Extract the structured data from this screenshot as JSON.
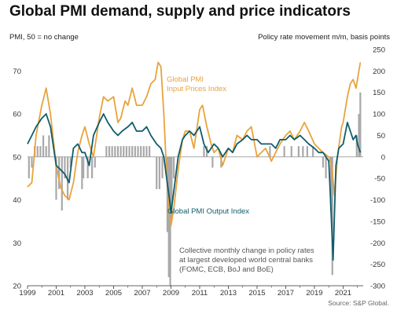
{
  "title": "Global PMI demand, supply and price indicators",
  "left_axis_label": "PMI, 50 = no change",
  "right_axis_label": "Policy rate movement m/m, basis points",
  "source": "Source: S&P Global.",
  "colors": {
    "prices": "#e8a33d",
    "output": "#0f5c6b",
    "bars": "#a9a9a9"
  },
  "chart_data": {
    "type": "line",
    "left_axis": {
      "ylim": [
        20,
        75
      ],
      "ticks": [
        20,
        30,
        40,
        50,
        60,
        70
      ]
    },
    "right_axis": {
      "ylim": [
        -300,
        250
      ],
      "ticks": [
        -300,
        -250,
        -200,
        -150,
        -100,
        -50,
        0,
        50,
        100,
        150,
        200,
        250
      ]
    },
    "x_axis": {
      "range": [
        1999,
        2022.4
      ],
      "tick_labels": [
        "1999",
        "2001",
        "2003",
        "2005",
        "2007",
        "2009",
        "2011",
        "2013",
        "2015",
        "2017",
        "2019",
        "2021"
      ]
    },
    "grid": false,
    "series": [
      {
        "name": "Global PMI Input Prices Index",
        "axis": "left",
        "x": [
          1999.0,
          1999.3,
          1999.6,
          2000.0,
          2000.3,
          2000.6,
          2001.0,
          2001.3,
          2001.6,
          2001.9,
          2002.2,
          2002.5,
          2002.8,
          2003.0,
          2003.3,
          2003.6,
          2004.0,
          2004.3,
          2004.6,
          2005.0,
          2005.3,
          2005.5,
          2005.8,
          2006.0,
          2006.3,
          2006.6,
          2007.0,
          2007.3,
          2007.6,
          2007.9,
          2008.1,
          2008.3,
          2008.5,
          2008.7,
          2008.9,
          2009.0,
          2009.2,
          2009.5,
          2009.8,
          2010.0,
          2010.3,
          2010.6,
          2011.0,
          2011.2,
          2011.5,
          2011.8,
          2012.0,
          2012.3,
          2012.6,
          2013.0,
          2013.3,
          2013.6,
          2014.0,
          2014.3,
          2014.6,
          2015.0,
          2015.3,
          2015.6,
          2016.0,
          2016.3,
          2016.6,
          2017.0,
          2017.3,
          2017.6,
          2018.0,
          2018.3,
          2018.6,
          2019.0,
          2019.3,
          2019.6,
          2020.0,
          2020.2,
          2020.4,
          2020.6,
          2020.9,
          2021.0,
          2021.3,
          2021.5,
          2021.7,
          2021.9,
          2022.1,
          2022.2
        ],
        "values": [
          43,
          44,
          55,
          62,
          66,
          60,
          48,
          43,
          41,
          40,
          44,
          51,
          55,
          57,
          53,
          50,
          59,
          64,
          63,
          64,
          58,
          59,
          63,
          62,
          66,
          62,
          62,
          64,
          67,
          68,
          72,
          71,
          60,
          46,
          36,
          34,
          38,
          47,
          54,
          56,
          56,
          52,
          61,
          62,
          57,
          53,
          51,
          52,
          48,
          52,
          51,
          55,
          54,
          56,
          57,
          50,
          51,
          52,
          49,
          51,
          53,
          55,
          56,
          54,
          56,
          58,
          56,
          53,
          52,
          51,
          50,
          48,
          41,
          50,
          57,
          58,
          64,
          67,
          68,
          66,
          70,
          72
        ]
      },
      {
        "name": "Global PMI Output Index",
        "axis": "left",
        "x": [
          1999.0,
          1999.3,
          1999.6,
          2000.0,
          2000.3,
          2000.6,
          2001.0,
          2001.3,
          2001.6,
          2001.9,
          2002.2,
          2002.5,
          2002.8,
          2003.0,
          2003.3,
          2003.6,
          2004.0,
          2004.3,
          2004.6,
          2005.0,
          2005.3,
          2005.6,
          2006.0,
          2006.3,
          2006.6,
          2007.0,
          2007.3,
          2007.6,
          2008.0,
          2008.3,
          2008.5,
          2008.7,
          2008.9,
          2009.0,
          2009.2,
          2009.5,
          2009.8,
          2010.0,
          2010.3,
          2010.6,
          2011.0,
          2011.3,
          2011.6,
          2012.0,
          2012.3,
          2012.6,
          2013.0,
          2013.3,
          2013.6,
          2014.0,
          2014.3,
          2014.6,
          2015.0,
          2015.3,
          2015.6,
          2016.0,
          2016.3,
          2016.6,
          2017.0,
          2017.3,
          2017.6,
          2018.0,
          2018.3,
          2018.6,
          2019.0,
          2019.3,
          2019.6,
          2020.0,
          2020.1,
          2020.3,
          2020.5,
          2020.7,
          2021.0,
          2021.3,
          2021.5,
          2021.7,
          2021.9,
          2022.0,
          2022.2
        ],
        "values": [
          53,
          55,
          57,
          59,
          60,
          57,
          48,
          47,
          46,
          44,
          52,
          53,
          51,
          51,
          48,
          55,
          58,
          60,
          58,
          56,
          55,
          56,
          57,
          58,
          56,
          56,
          57,
          55,
          53,
          52,
          50,
          45,
          40,
          37,
          42,
          50,
          54,
          55,
          56,
          55,
          57,
          53,
          51,
          53,
          52,
          50,
          52,
          51,
          53,
          54,
          55,
          54,
          54,
          53,
          53,
          53,
          52,
          54,
          54,
          55,
          54,
          55,
          54,
          53,
          52,
          51,
          51,
          49,
          42,
          26,
          48,
          52,
          53,
          58,
          56,
          54,
          55,
          53,
          51
        ]
      },
      {
        "name": "Collective monthly change in policy rates at largest developed world central banks (FOMC, ECB, BoJ and BoE)",
        "axis": "right",
        "type": "bar",
        "x": [
          1999.1,
          1999.3,
          1999.5,
          1999.7,
          1999.9,
          2000.1,
          2000.3,
          2000.5,
          2001.0,
          2001.2,
          2001.4,
          2001.6,
          2001.8,
          2002.0,
          2002.8,
          2002.9,
          2003.2,
          2003.5,
          2003.7,
          2004.5,
          2004.7,
          2004.9,
          2005.1,
          2005.3,
          2005.5,
          2005.7,
          2005.9,
          2006.1,
          2006.3,
          2006.5,
          2006.7,
          2006.9,
          2007.1,
          2007.3,
          2007.5,
          2008.0,
          2008.2,
          2008.4,
          2008.75,
          2008.85,
          2008.95,
          2009.05,
          2009.2,
          2011.3,
          2011.5,
          2011.9,
          2012.5,
          2015.9,
          2016.9,
          2017.4,
          2017.9,
          2018.2,
          2018.5,
          2018.9,
          2019.6,
          2019.8,
          2020.15,
          2020.25,
          2021.95,
          2022.1,
          2022.2
        ],
        "values": [
          -50,
          -25,
          25,
          25,
          25,
          50,
          25,
          50,
          -100,
          -75,
          -125,
          -50,
          -100,
          -25,
          -75,
          -50,
          -50,
          -50,
          -25,
          25,
          25,
          25,
          25,
          25,
          25,
          25,
          25,
          25,
          25,
          25,
          25,
          25,
          25,
          25,
          25,
          -75,
          -75,
          -50,
          -175,
          -280,
          -300,
          -150,
          -50,
          25,
          25,
          -25,
          -25,
          25,
          25,
          25,
          25,
          25,
          25,
          25,
          -25,
          -50,
          -125,
          -275,
          50,
          100,
          150
        ]
      }
    ],
    "annotations": [
      {
        "text": [
          "Global PMI",
          "Input Prices Index"
        ],
        "series": "prices"
      },
      {
        "text": [
          "Global PMI Output Index"
        ],
        "series": "output"
      },
      {
        "text": [
          "Collective monthly change in policy rates",
          "at largest developed world central banks",
          "(FOMC, ECB, BoJ and BoE)"
        ],
        "series": "bars"
      }
    ]
  }
}
